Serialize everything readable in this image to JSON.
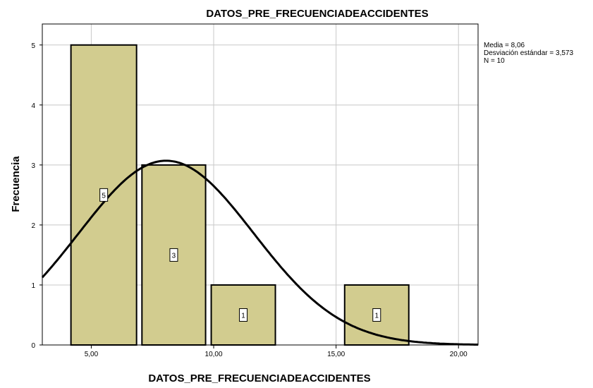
{
  "chart_data": {
    "type": "bar",
    "title": "DATOS_PRE_FRECUENCIADEACCIDENTES",
    "xlabel": "DATOS_PRE_FRECUENCIADEACCIDENTES",
    "ylabel": "Frecuencia",
    "xlim": [
      3.0,
      20.8
    ],
    "ylim": [
      0,
      5.35
    ],
    "x_ticks": [
      {
        "value": 5,
        "label": "5,00"
      },
      {
        "value": 10,
        "label": "10,00"
      },
      {
        "value": 15,
        "label": "15,00"
      },
      {
        "value": 20,
        "label": "20,00"
      }
    ],
    "y_ticks": [
      {
        "value": 0,
        "label": "0"
      },
      {
        "value": 1,
        "label": "1"
      },
      {
        "value": 2,
        "label": "2"
      },
      {
        "value": 3,
        "label": "3"
      },
      {
        "value": 4,
        "label": "4"
      },
      {
        "value": 5,
        "label": "5"
      }
    ],
    "bins": [
      {
        "start": 4.17,
        "end": 6.85,
        "count": 5,
        "label": "5"
      },
      {
        "start": 7.07,
        "end": 9.67,
        "count": 3,
        "label": "3"
      },
      {
        "start": 9.9,
        "end": 12.52,
        "count": 1,
        "label": "1"
      },
      {
        "start": 15.35,
        "end": 17.97,
        "count": 1,
        "label": "1"
      }
    ],
    "normal_curve": {
      "mean": 8.06,
      "sd": 3.573,
      "n": 10,
      "bin_width": 2.75
    },
    "grid": true,
    "bar_color": "#d2cc8f",
    "stats_box": {
      "mean": "Media = 8,06",
      "sd": "Desviación estándar = 3,573",
      "n": "N = 10"
    }
  }
}
